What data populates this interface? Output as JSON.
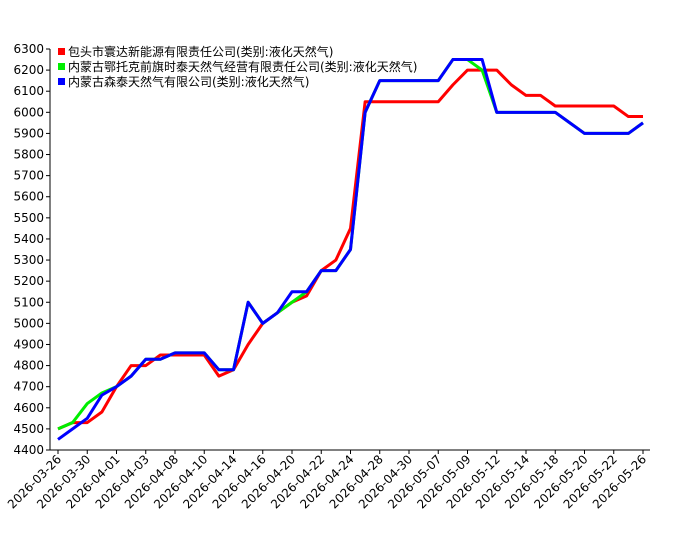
{
  "chart_data": {
    "type": "line",
    "categories": [
      "2026-03-26",
      null,
      "2026-03-30",
      null,
      "2026-04-01",
      null,
      "2026-04-03",
      null,
      "2026-04-08",
      null,
      "2026-04-10",
      null,
      "2026-04-14",
      null,
      "2026-04-16",
      null,
      "2026-04-20",
      null,
      "2026-04-22",
      null,
      "2026-04-24",
      null,
      "2026-04-28",
      null,
      "2026-04-30",
      null,
      "2026-05-07",
      null,
      "2026-05-09",
      null,
      "2026-05-12",
      null,
      "2026-05-14",
      null,
      "2026-05-18",
      null,
      "2026-05-20",
      null,
      "2026-05-22",
      null,
      "2026-05-26"
    ],
    "series": [
      {
        "name": "包头市寰达新能源有限责任公司(类别:液化天然气)",
        "color": "#ff0000",
        "values": [
          4500,
          4530,
          4530,
          4580,
          4700,
          4800,
          4800,
          4850,
          4850,
          4850,
          4850,
          4750,
          4780,
          4900,
          5000,
          5050,
          5100,
          5130,
          5250,
          5300,
          5450,
          6050,
          6050,
          6050,
          6050,
          6050,
          6050,
          6130,
          6200,
          6200,
          6200,
          6130,
          6080,
          6080,
          6030,
          6030,
          6030,
          6030,
          6030,
          5980,
          5980
        ]
      },
      {
        "name": "内蒙古鄂托克前旗时泰天然气经营有限责任公司(类别:液化天然气)",
        "color": "#00ee00",
        "values": [
          4500,
          4530,
          4620,
          4670,
          4700,
          4750,
          4830,
          4830,
          4860,
          4860,
          4860,
          4780,
          4780,
          5100,
          5000,
          5050,
          5100,
          5150,
          5250,
          5250,
          5350,
          6000,
          6150,
          6150,
          6150,
          6150,
          6150,
          6250,
          6250,
          6200,
          6000,
          6000,
          6000,
          6000,
          6000,
          5950,
          5900,
          5900,
          5900,
          5900,
          5950
        ]
      },
      {
        "name": "内蒙古森泰天然气有限公司(类别:液化天然气)",
        "color": "#0000ff",
        "values": [
          4450,
          4500,
          4550,
          4660,
          4700,
          4750,
          4830,
          4830,
          4860,
          4860,
          4860,
          4780,
          4780,
          5100,
          5000,
          5050,
          5150,
          5150,
          5250,
          5250,
          5350,
          6000,
          6150,
          6150,
          6150,
          6150,
          6150,
          6250,
          6250,
          6250,
          6000,
          6000,
          6000,
          6000,
          6000,
          5950,
          5900,
          5900,
          5900,
          5900,
          5950
        ]
      }
    ],
    "ylim": [
      4400,
      6300
    ],
    "yticks": [
      4400,
      4500,
      4600,
      4700,
      4800,
      4900,
      5000,
      5100,
      5200,
      5300,
      5400,
      5500,
      5600,
      5700,
      5800,
      5900,
      6000,
      6100,
      6200,
      6300
    ],
    "legend": "upper left"
  }
}
